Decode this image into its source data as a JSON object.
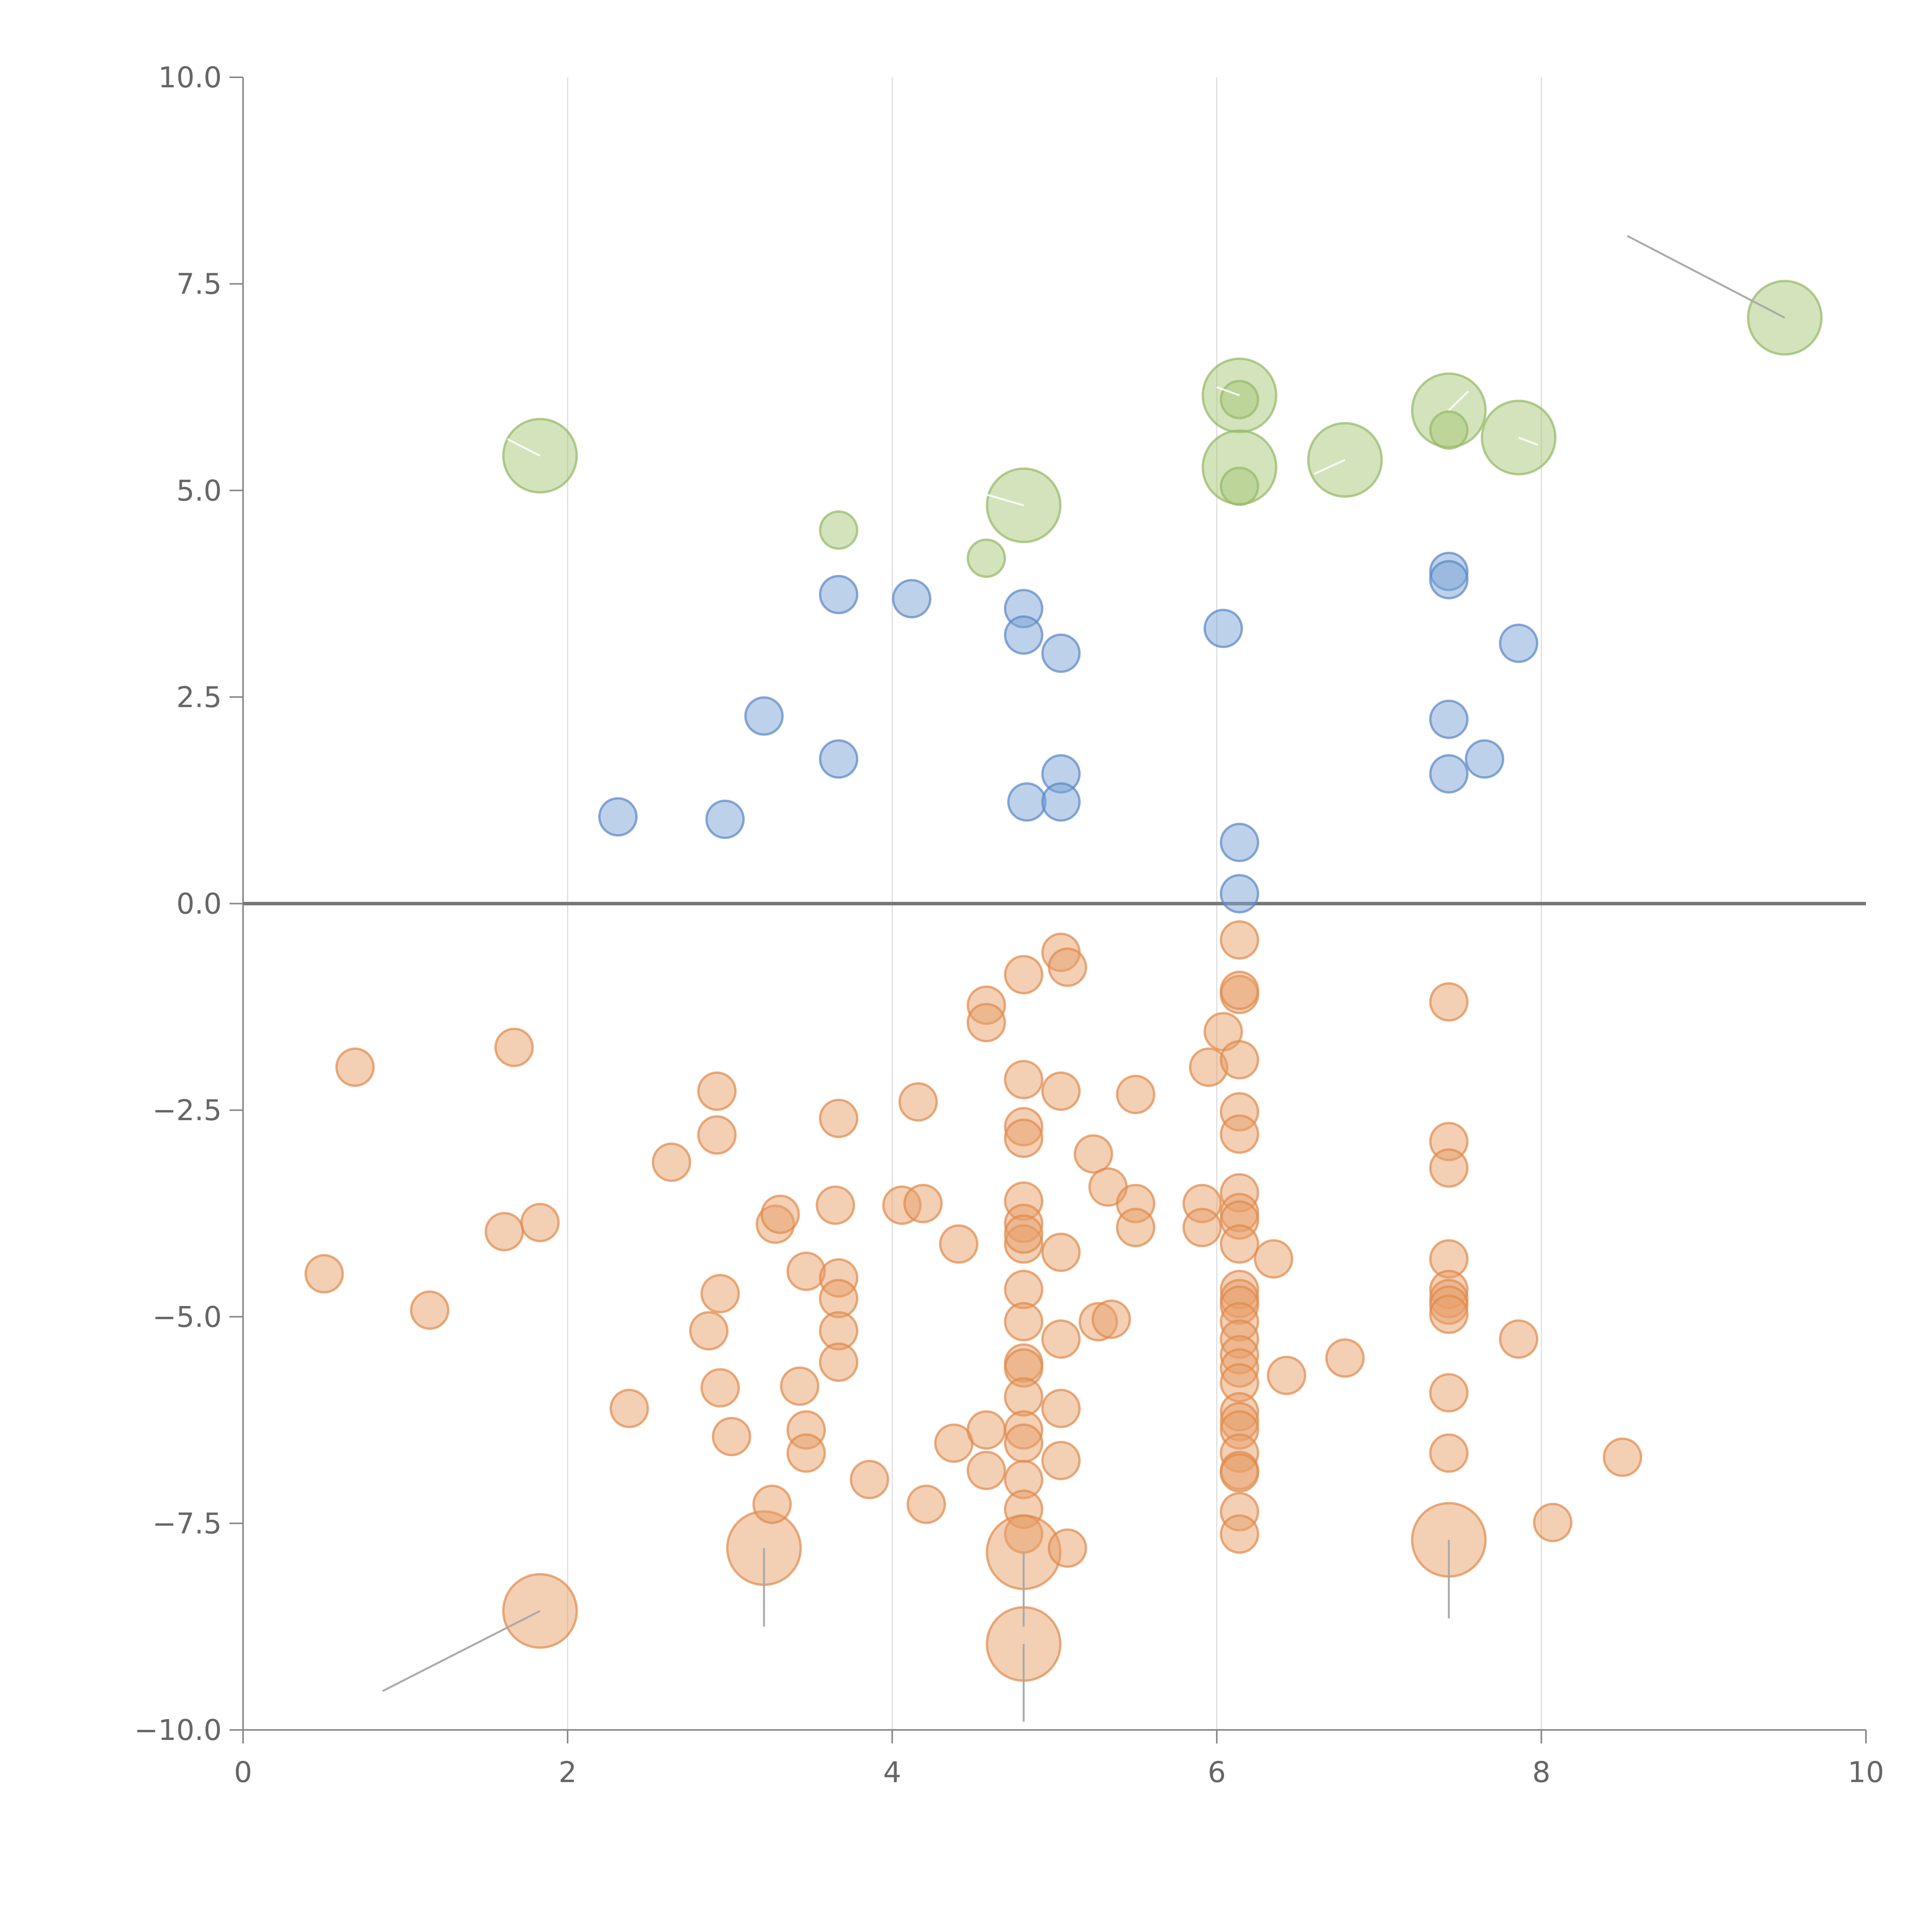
{
  "chart_data": {
    "type": "scatter",
    "title": "",
    "xlabel": "",
    "ylabel": "",
    "xlim": [
      0,
      10
    ],
    "ylim": [
      -10,
      10
    ],
    "x_ticks": [
      "0",
      "2",
      "4",
      "6",
      "8",
      "10"
    ],
    "x_tick_values": [
      0,
      2,
      4,
      6,
      8,
      10
    ],
    "y_ticks": [
      "10.0",
      "7.5",
      "5.0",
      "2.5",
      "0.0",
      "−2.5",
      "−5.0",
      "−7.5",
      "−10.0"
    ],
    "y_tick_values": [
      10,
      7.5,
      5,
      2.5,
      0,
      -2.5,
      -5,
      -7.5,
      -10
    ],
    "grid": "vertical",
    "colors": {
      "green": "#a8c878",
      "blue": "#7ba3d6",
      "orange": "#e8a06a",
      "green_stroke": "#94b866",
      "blue_stroke": "#5a86c4",
      "orange_stroke": "#de8a4c"
    },
    "series": [
      {
        "name": "green",
        "color": "green",
        "points": [
          [
            1.83,
            5.42,
            3
          ],
          [
            3.67,
            4.52,
            1
          ],
          [
            4.58,
            4.18,
            1
          ],
          [
            4.81,
            4.82,
            3
          ],
          [
            6.14,
            6.15,
            3
          ],
          [
            6.14,
            6.1,
            1
          ],
          [
            6.14,
            5.28,
            3
          ],
          [
            6.14,
            5.05,
            1
          ],
          [
            6.79,
            5.37,
            3
          ],
          [
            7.43,
            5.97,
            3
          ],
          [
            7.43,
            5.73,
            1
          ],
          [
            7.86,
            5.64,
            3
          ],
          [
            9.5,
            7.09,
            3
          ]
        ]
      },
      {
        "name": "blue",
        "color": "blue",
        "points": [
          [
            2.31,
            1.05,
            1
          ],
          [
            2.97,
            1.02,
            1
          ],
          [
            3.21,
            2.27,
            1
          ],
          [
            3.67,
            3.74,
            1
          ],
          [
            3.67,
            1.75,
            1
          ],
          [
            4.12,
            3.69,
            1
          ],
          [
            4.81,
            3.57,
            1
          ],
          [
            4.81,
            3.25,
            1
          ],
          [
            4.83,
            1.23,
            1
          ],
          [
            5.04,
            3.03,
            1
          ],
          [
            5.04,
            1.57,
            1
          ],
          [
            5.04,
            1.23,
            1
          ],
          [
            6.04,
            3.33,
            1
          ],
          [
            6.14,
            0.74,
            1
          ],
          [
            6.14,
            0.12,
            1
          ],
          [
            7.43,
            4.02,
            1
          ],
          [
            7.43,
            3.92,
            1
          ],
          [
            7.43,
            2.23,
            1
          ],
          [
            7.43,
            1.57,
            1
          ],
          [
            7.65,
            1.75,
            1
          ],
          [
            7.86,
            3.15,
            1
          ]
        ]
      },
      {
        "name": "orange",
        "color": "orange",
        "points": [
          [
            0.5,
            -4.48,
            1
          ],
          [
            0.69,
            -1.98,
            1
          ],
          [
            1.15,
            -4.92,
            1
          ],
          [
            1.61,
            -3.97,
            1
          ],
          [
            1.67,
            -1.74,
            1
          ],
          [
            1.83,
            -3.86,
            1
          ],
          [
            1.83,
            -8.56,
            3
          ],
          [
            2.38,
            -6.11,
            1
          ],
          [
            2.64,
            -3.13,
            1
          ],
          [
            2.87,
            -5.17,
            1
          ],
          [
            2.92,
            -2.27,
            1
          ],
          [
            2.92,
            -2.8,
            1
          ],
          [
            2.94,
            -4.72,
            1
          ],
          [
            2.94,
            -5.86,
            1
          ],
          [
            3.01,
            -6.45,
            1
          ],
          [
            3.21,
            -7.8,
            3
          ],
          [
            3.26,
            -7.27,
            1
          ],
          [
            3.28,
            -3.88,
            1
          ],
          [
            3.31,
            -3.76,
            1
          ],
          [
            3.43,
            -5.84,
            1
          ],
          [
            3.47,
            -6.37,
            1
          ],
          [
            3.47,
            -6.65,
            1
          ],
          [
            3.47,
            -4.45,
            1
          ],
          [
            3.65,
            -3.65,
            1
          ],
          [
            3.67,
            -2.6,
            1
          ],
          [
            3.67,
            -4.53,
            1
          ],
          [
            3.67,
            -4.78,
            1
          ],
          [
            3.67,
            -5.17,
            1
          ],
          [
            3.67,
            -5.55,
            1
          ],
          [
            3.86,
            -6.97,
            1
          ],
          [
            4.06,
            -3.65,
            1
          ],
          [
            4.16,
            -2.4,
            1
          ],
          [
            4.19,
            -3.63,
            1
          ],
          [
            4.21,
            -7.27,
            1
          ],
          [
            4.38,
            -6.53,
            1
          ],
          [
            4.41,
            -4.12,
            1
          ],
          [
            4.58,
            -1.23,
            1
          ],
          [
            4.58,
            -1.44,
            1
          ],
          [
            4.58,
            -6.37,
            1
          ],
          [
            4.58,
            -6.86,
            1
          ],
          [
            4.81,
            -0.86,
            1
          ],
          [
            4.81,
            -2.13,
            1
          ],
          [
            4.81,
            -2.7,
            1
          ],
          [
            4.81,
            -2.84,
            1
          ],
          [
            4.81,
            -3.6,
            1
          ],
          [
            4.81,
            -3.87,
            1
          ],
          [
            4.81,
            -4.12,
            1
          ],
          [
            4.81,
            -4.0,
            1
          ],
          [
            4.81,
            -4.67,
            1
          ],
          [
            4.81,
            -5.06,
            1
          ],
          [
            4.81,
            -5.56,
            1
          ],
          [
            4.81,
            -5.62,
            1
          ],
          [
            4.81,
            -5.97,
            1
          ],
          [
            4.81,
            -6.37,
            1
          ],
          [
            4.81,
            -6.53,
            1
          ],
          [
            4.81,
            -6.97,
            1
          ],
          [
            4.81,
            -7.33,
            1
          ],
          [
            4.81,
            -7.63,
            1
          ],
          [
            4.81,
            -7.85,
            3
          ],
          [
            4.81,
            -8.96,
            3
          ],
          [
            5.04,
            -0.59,
            1
          ],
          [
            5.08,
            -0.77,
            1
          ],
          [
            5.04,
            -2.27,
            1
          ],
          [
            5.04,
            -4.22,
            1
          ],
          [
            5.04,
            -5.27,
            1
          ],
          [
            5.04,
            -6.11,
            1
          ],
          [
            5.04,
            -6.74,
            1
          ],
          [
            5.08,
            -7.8,
            1
          ],
          [
            5.24,
            -3.03,
            1
          ],
          [
            5.27,
            -5.06,
            1
          ],
          [
            5.33,
            -3.43,
            1
          ],
          [
            5.35,
            -5.03,
            1
          ],
          [
            5.5,
            -2.31,
            1
          ],
          [
            5.5,
            -3.63,
            1
          ],
          [
            5.5,
            -3.92,
            1
          ],
          [
            5.91,
            -3.63,
            1
          ],
          [
            5.91,
            -3.92,
            1
          ],
          [
            5.95,
            -1.98,
            1
          ],
          [
            6.04,
            -1.55,
            1
          ],
          [
            6.14,
            -0.44,
            1
          ],
          [
            6.14,
            -1.1,
            1
          ],
          [
            6.14,
            -1.05,
            1
          ],
          [
            6.14,
            -1.89,
            1
          ],
          [
            6.14,
            -2.52,
            1
          ],
          [
            6.14,
            -2.79,
            1
          ],
          [
            6.14,
            -3.5,
            1
          ],
          [
            6.14,
            -3.74,
            1
          ],
          [
            6.14,
            -3.83,
            1
          ],
          [
            6.14,
            -4.12,
            1
          ],
          [
            6.14,
            -4.67,
            1
          ],
          [
            6.14,
            -4.78,
            1
          ],
          [
            6.14,
            -4.86,
            1
          ],
          [
            6.14,
            -5.06,
            1
          ],
          [
            6.14,
            -5.27,
            1
          ],
          [
            6.14,
            -5.46,
            1
          ],
          [
            6.14,
            -5.62,
            1
          ],
          [
            6.14,
            -5.8,
            1
          ],
          [
            6.14,
            -6.15,
            1
          ],
          [
            6.14,
            -6.27,
            1
          ],
          [
            6.14,
            -6.37,
            1
          ],
          [
            6.14,
            -6.65,
            1
          ],
          [
            6.14,
            -6.86,
            1
          ],
          [
            6.14,
            -6.89,
            1
          ],
          [
            6.14,
            -7.36,
            1
          ],
          [
            6.14,
            -7.63,
            1
          ],
          [
            6.35,
            -4.3,
            1
          ],
          [
            6.43,
            -5.71,
            1
          ],
          [
            6.79,
            -5.5,
            1
          ],
          [
            7.43,
            -1.19,
            1
          ],
          [
            7.43,
            -2.88,
            1
          ],
          [
            7.43,
            -3.2,
            1
          ],
          [
            7.43,
            -4.3,
            1
          ],
          [
            7.43,
            -4.67,
            1
          ],
          [
            7.43,
            -4.78,
            1
          ],
          [
            7.43,
            -4.86,
            1
          ],
          [
            7.43,
            -4.97,
            1
          ],
          [
            7.43,
            -5.92,
            1
          ],
          [
            7.43,
            -6.65,
            1
          ],
          [
            7.43,
            -7.7,
            3
          ],
          [
            7.86,
            -5.27,
            1
          ],
          [
            8.07,
            -7.49,
            1
          ],
          [
            8.5,
            -6.7,
            1
          ]
        ]
      }
    ]
  }
}
